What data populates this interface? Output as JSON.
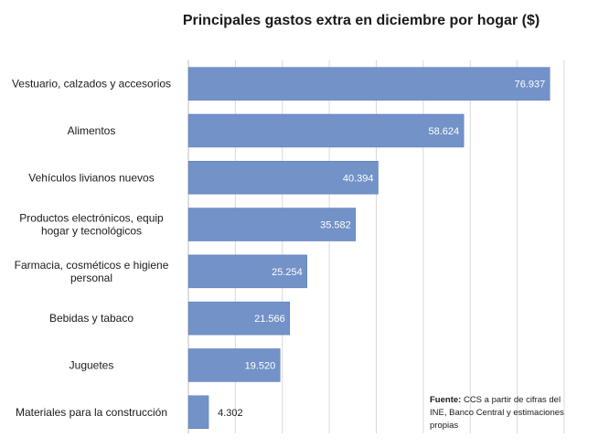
{
  "chart_data": {
    "type": "bar",
    "orientation": "horizontal",
    "title": "Principales gastos extra en diciembre por hogar ($)",
    "categories": [
      "Vestuario, calzados y accesorios",
      "Alimentos",
      "Vehículos livianos nuevos",
      "Productos electrónicos, equip hogar y tecnológicos",
      "Farmacia, cosméticos e higiene personal",
      "Bebidas y tabaco",
      "Juguetes",
      "Materiales para la construcción"
    ],
    "values": [
      76937,
      58624,
      40394,
      35582,
      25254,
      21566,
      19520,
      4302
    ],
    "value_labels": [
      "76.937",
      "58.624",
      "40.394",
      "35.582",
      "25.254",
      "21.566",
      "19.520",
      "4.302"
    ],
    "xlim": [
      0,
      80000
    ],
    "grid": true,
    "bar_color": "#7292c8",
    "source_label": "Fuente:",
    "source_text": "CCS a partir de cifras del INE, Banco Central y estimaciones propias"
  }
}
